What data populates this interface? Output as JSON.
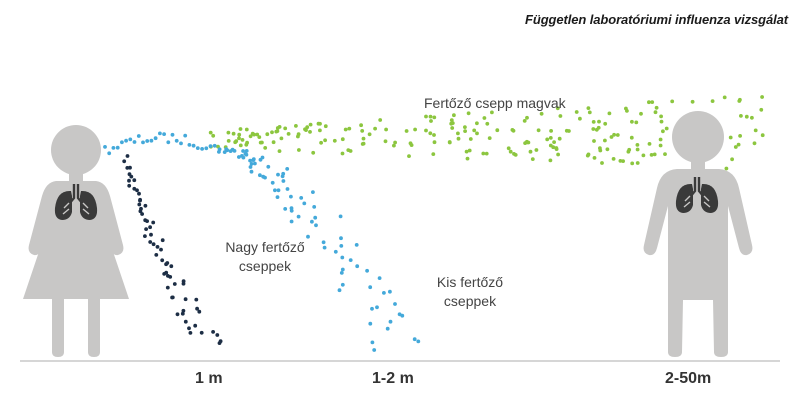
{
  "title": "Független laboratóriumi influenza vizsgálat",
  "labels": {
    "airborne": "Fertőző csepp magvak",
    "large_line1": "Nagy fertőző",
    "large_line2": "cseppek",
    "small_line1": "Kis fertőző",
    "small_line2": "cseppek"
  },
  "distances": [
    "1 m",
    "1-2 m",
    "2-50m"
  ],
  "colors": {
    "person": "#c8c7c6",
    "lungs": "#3a3a3a",
    "large_droplets": "#1d2e45",
    "small_droplets": "#44a9da",
    "airborne_droplets": "#8cc63f",
    "ground": "#c8c8c8",
    "text": "#444444"
  }
}
